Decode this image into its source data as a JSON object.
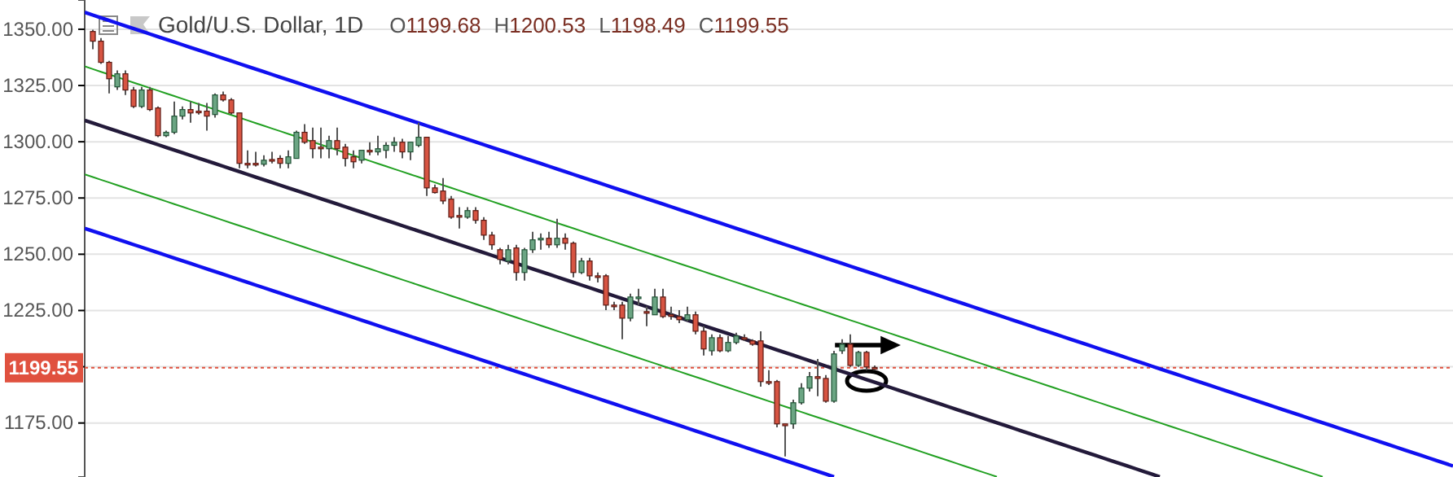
{
  "chart_data": {
    "type": "candlestick",
    "title": "Gold/U.S. Dollar, 1D",
    "annotations": [
      "O1199.68",
      "H1200.53",
      "L1198.49",
      "C1199.55"
    ],
    "categories": [
      null,
      null,
      null,
      null,
      null,
      null,
      null,
      null,
      null,
      null,
      null,
      null,
      null,
      null,
      null,
      null,
      null,
      null,
      null,
      null,
      null,
      null,
      null,
      null,
      null,
      null,
      null,
      null,
      null,
      null,
      null,
      null,
      null,
      null,
      null,
      null,
      null,
      null,
      null,
      null,
      null,
      null,
      null,
      null,
      null,
      null,
      null,
      null,
      null,
      null,
      null,
      null,
      null,
      null,
      null,
      null,
      null,
      null,
      null,
      null,
      null,
      null,
      null,
      null,
      null,
      null,
      null,
      null,
      null,
      null,
      null,
      null,
      null,
      null,
      null,
      null,
      null,
      null,
      null,
      null,
      null,
      null,
      null,
      null,
      null,
      null,
      null,
      null,
      null,
      null,
      null,
      null,
      null,
      null,
      null,
      null,
      null,
      null,
      null,
      null,
      null,
      null,
      null,
      null,
      null,
      null,
      null,
      null,
      null,
      null,
      null,
      null,
      null,
      null,
      null,
      null,
      null,
      null,
      null,
      null,
      null,
      null,
      null,
      null,
      null,
      null,
      null,
      null,
      null,
      null,
      null,
      null,
      null,
      null,
      null,
      null,
      null,
      null,
      null,
      null,
      null,
      null,
      null,
      null,
      null,
      null,
      null,
      null,
      null,
      null,
      null,
      null,
      null,
      null,
      null,
      null,
      null,
      null,
      null,
      null,
      null,
      null,
      null,
      null,
      null,
      null,
      null,
      null,
      null
    ],
    "ohlc": [
      null,
      [
        1349.0,
        1349.8,
        1341.1,
        1344.7
      ],
      [
        1344.7,
        1346.1,
        1334.6,
        1335.3
      ],
      [
        1335.3,
        1336.0,
        1321.5,
        1328.0
      ],
      [
        1324.4,
        1331.7,
        1323.0,
        1330.2
      ],
      [
        1330.2,
        1331.7,
        1320.8,
        1323.0
      ],
      [
        1323.0,
        1324.4,
        1315.0,
        1315.7
      ],
      [
        1315.7,
        1324.4,
        1315.0,
        1323.0
      ],
      [
        1323.0,
        1324.4,
        1313.6,
        1314.3
      ],
      [
        1315.0,
        1315.7,
        1302.0,
        1302.7
      ],
      [
        1302.7,
        1304.9,
        1302.0,
        1304.2
      ],
      [
        1304.2,
        1317.9,
        1303.4,
        1311.4
      ],
      [
        1311.4,
        1315.7,
        1309.9,
        1314.3
      ],
      [
        1314.3,
        1317.9,
        1308.5,
        1312.8
      ],
      [
        1313.6,
        1317.2,
        1312.1,
        1313.2
      ],
      [
        1313.6,
        1317.2,
        1304.9,
        1311.4
      ],
      [
        1312.1,
        1321.5,
        1310.7,
        1320.8
      ],
      [
        1320.8,
        1322.3,
        1317.9,
        1318.6
      ],
      [
        1318.6,
        1319.4,
        1312.1,
        1312.8
      ],
      [
        1312.8,
        1312.8,
        1288.2,
        1290.4
      ],
      [
        1290.4,
        1296.2,
        1288.2,
        1290.0
      ],
      [
        1290.4,
        1295.5,
        1289.0,
        1290.0
      ],
      [
        1290.0,
        1294.0,
        1289.0,
        1291.8
      ],
      [
        1292.1,
        1295.5,
        1290.4,
        1291.8
      ],
      [
        1292.6,
        1294.0,
        1288.2,
        1290.4
      ],
      [
        1290.4,
        1296.2,
        1288.2,
        1293.3
      ],
      [
        1292.6,
        1304.9,
        1292.6,
        1304.2
      ],
      [
        1304.2,
        1307.8,
        1299.1,
        1299.8
      ],
      [
        1300.5,
        1306.3,
        1292.6,
        1296.9
      ],
      [
        1297.6,
        1306.3,
        1292.6,
        1297.3
      ],
      [
        1296.9,
        1302.7,
        1292.6,
        1300.5
      ],
      [
        1300.5,
        1306.3,
        1294.0,
        1296.9
      ],
      [
        1297.6,
        1299.1,
        1289.0,
        1292.6
      ],
      [
        1293.3,
        1296.2,
        1288.2,
        1291.1
      ],
      [
        1291.8,
        1296.2,
        1290.4,
        1296.2
      ],
      [
        1296.2,
        1299.8,
        1294.0,
        1295.8
      ],
      [
        1295.5,
        1302.7,
        1294.0,
        1296.9
      ],
      [
        1296.2,
        1299.8,
        1292.6,
        1298.4
      ],
      [
        1298.4,
        1302.0,
        1295.5,
        1299.8
      ],
      [
        1299.8,
        1301.3,
        1292.6,
        1295.5
      ],
      [
        1295.5,
        1299.8,
        1291.8,
        1299.8
      ],
      [
        1298.4,
        1308.5,
        1297.6,
        1302.0
      ],
      [
        1302.0,
        1302.0,
        1275.9,
        1279.5
      ],
      [
        1279.5,
        1281.0,
        1277.0,
        1277.4
      ],
      [
        1278.1,
        1283.9,
        1272.3,
        1273.7
      ],
      [
        1274.5,
        1275.9,
        1265.8,
        1266.5
      ],
      [
        1267.2,
        1270.9,
        1261.4,
        1266.5
      ],
      [
        1266.5,
        1270.9,
        1265.8,
        1269.4
      ],
      [
        1269.4,
        1270.9,
        1263.6,
        1265.1
      ],
      [
        1265.1,
        1266.5,
        1256.4,
        1258.5
      ],
      [
        1258.5,
        1260.0,
        1252.0,
        1254.2
      ],
      [
        1252.0,
        1252.8,
        1245.5,
        1247.7
      ],
      [
        1247.0,
        1254.2,
        1245.5,
        1252.0
      ],
      [
        1252.8,
        1254.2,
        1238.3,
        1241.9
      ],
      [
        1241.9,
        1252.8,
        1238.3,
        1252.0
      ],
      [
        1252.0,
        1260.0,
        1250.6,
        1256.4
      ],
      [
        1256.4,
        1259.3,
        1252.0,
        1257.1
      ],
      [
        1257.1,
        1260.0,
        1252.8,
        1254.2
      ],
      [
        1254.2,
        1265.8,
        1252.8,
        1257.1
      ],
      [
        1257.1,
        1259.3,
        1252.0,
        1254.9
      ],
      [
        1254.9,
        1255.6,
        1239.7,
        1241.9
      ],
      [
        1241.9,
        1248.4,
        1241.2,
        1247.0
      ],
      [
        1247.0,
        1248.4,
        1238.3,
        1240.4
      ],
      [
        1240.4,
        1241.9,
        1237.5,
        1239.7
      ],
      [
        1240.4,
        1241.2,
        1225.2,
        1227.4
      ],
      [
        1227.4,
        1228.9,
        1225.2,
        1227.0
      ],
      [
        1227.4,
        1228.9,
        1212.2,
        1221.6
      ],
      [
        1221.6,
        1232.5,
        1220.2,
        1231.0
      ],
      [
        1230.7,
        1234.7,
        1227.4,
        1231.0
      ],
      [
        1224.5,
        1226.7,
        1218.0,
        1223.8
      ],
      [
        1223.1,
        1234.7,
        1223.1,
        1231.0
      ],
      [
        1231.0,
        1234.7,
        1221.6,
        1222.3
      ],
      [
        1223.1,
        1226.7,
        1220.9,
        1222.7
      ],
      [
        1222.3,
        1225.2,
        1219.4,
        1220.9
      ],
      [
        1220.9,
        1226.7,
        1220.2,
        1223.1
      ],
      [
        1223.1,
        1224.5,
        1214.4,
        1215.8
      ],
      [
        1215.8,
        1218.0,
        1205.0,
        1207.9
      ],
      [
        1207.1,
        1214.4,
        1205.0,
        1212.9
      ],
      [
        1212.9,
        1214.4,
        1206.4,
        1207.1
      ],
      [
        1207.1,
        1213.7,
        1206.4,
        1210.8
      ],
      [
        1210.8,
        1215.1,
        1210.0,
        1213.7
      ],
      [
        1212.9,
        1214.4,
        1211.5,
        1212.2
      ],
      [
        1211.5,
        1212.2,
        1209.3,
        1210.0
      ],
      [
        1211.5,
        1215.8,
        1191.2,
        1193.4
      ],
      [
        1193.4,
        1198.5,
        1191.9,
        1193.0
      ],
      [
        1193.4,
        1194.1,
        1173.1,
        1174.6
      ],
      [
        1174.6,
        1174.6,
        1160.1,
        1173.8
      ],
      [
        1174.6,
        1185.4,
        1172.4,
        1184.0
      ],
      [
        1184.0,
        1192.7,
        1183.2,
        1190.5
      ],
      [
        1190.5,
        1197.7,
        1189.0,
        1195.6
      ],
      [
        1195.6,
        1203.5,
        1186.9,
        1194.8
      ],
      [
        1194.8,
        1196.3,
        1184.0,
        1184.7
      ],
      [
        1184.7,
        1207.1,
        1184.0,
        1205.7
      ],
      [
        1207.1,
        1212.2,
        1205.7,
        1210.0
      ],
      [
        1210.0,
        1214.4,
        1199.9,
        1200.6
      ],
      [
        1200.6,
        1207.1,
        1199.9,
        1206.4
      ],
      [
        1206.4,
        1207.1,
        1198.5,
        1199.9
      ],
      [
        1199.68,
        1200.53,
        1198.49,
        1199.55
      ],
      null,
      null,
      null,
      null,
      null,
      null,
      null,
      null,
      null,
      null,
      null,
      null,
      null,
      null,
      null,
      null,
      null,
      null,
      null,
      null,
      null,
      null,
      null,
      null,
      null,
      null,
      null,
      null,
      null,
      null,
      null,
      null,
      null,
      null,
      null,
      null,
      null,
      null,
      null,
      null,
      null,
      null,
      null,
      null,
      null,
      null,
      null,
      null,
      null,
      null,
      null,
      null,
      null,
      null,
      null,
      null,
      null,
      null,
      null,
      null,
      null,
      null,
      null,
      null,
      null,
      null,
      null,
      null,
      null,
      null,
      null
    ],
    "series": [
      {
        "type": "line",
        "color": "#1010f0",
        "values": [
          1357.5,
          1356.3,
          1355.1,
          1353.9,
          1352.7,
          1351.5,
          1350.3,
          1349.1,
          1347.9,
          1346.7,
          1345.5,
          1344.3,
          1343.1,
          1341.9,
          1340.7,
          1339.5,
          1338.3,
          1337.1,
          1335.9,
          1334.7,
          1333.5,
          1332.3,
          1331.1,
          1329.9,
          1328.7,
          1327.5,
          1326.3,
          1325.1,
          1323.9,
          1322.7,
          1321.5,
          1320.3,
          1319.1,
          1317.9,
          1316.7,
          1315.5,
          1314.3,
          1313.1,
          1311.9,
          1310.7,
          1309.5,
          1308.3,
          1307.1,
          1305.9,
          1304.7,
          1303.5,
          1302.3,
          1301.1,
          1299.9,
          1298.7,
          1297.5,
          1296.3,
          1295.1,
          1293.9,
          1292.7,
          1291.5,
          1290.3,
          1289.1,
          1287.9,
          1286.7,
          1285.5,
          1284.3,
          1283.1,
          1281.9,
          1280.7,
          1279.5,
          1278.3,
          1277.1,
          1275.9,
          1274.7,
          1273.5,
          1272.3,
          1271.1,
          1269.9,
          1268.7,
          1267.5,
          1266.3,
          1265.1,
          1263.9,
          1262.7,
          1261.5,
          1260.3,
          1259.1,
          1257.9,
          1256.7,
          1255.5,
          1254.3,
          1253.1,
          1251.9,
          1250.7,
          1249.5,
          1248.3,
          1247.1,
          1245.9,
          1244.7,
          1243.5,
          1242.3,
          1241.1,
          1239.9,
          1238.7,
          1237.5,
          1236.3,
          1235.1,
          1233.9,
          1232.7,
          1231.5,
          1230.3,
          1229.1,
          1227.9,
          1226.7,
          1225.5,
          1224.3,
          1223.1,
          1221.9,
          1220.7,
          1219.5,
          1218.3,
          1217.1,
          1215.9,
          1214.7,
          1213.5,
          1212.3,
          1211.1,
          1209.9,
          1208.7,
          1207.5,
          1206.3,
          1205.1,
          1203.9,
          1202.7,
          1201.5,
          1200.3,
          1199.1,
          1197.9,
          1196.7,
          1195.5,
          1194.3,
          1193.1,
          1191.9,
          1190.7,
          1189.5,
          1188.3,
          1187.1,
          1185.9,
          1184.7,
          1183.5,
          1182.3,
          1181.1,
          1179.9,
          1178.7,
          1177.5,
          1176.3,
          1175.1,
          1173.9,
          1172.7,
          1171.5,
          1170.3,
          1169.1,
          1167.9,
          1166.7,
          1165.5,
          1164.3,
          1163.1,
          1161.9,
          1160.7,
          1159.5,
          1158.3,
          1157.1,
          1155.9
        ]
      },
      {
        "type": "line",
        "color": "#22a022",
        "values": [
          1333.5,
          1332.3,
          1331.1,
          1329.9,
          1328.7,
          1327.5,
          1326.3,
          1325.1,
          1323.9,
          1322.7,
          1321.5,
          1320.3,
          1319.1,
          1317.9,
          1316.7,
          1315.5,
          1314.3,
          1313.1,
          1311.9,
          1310.7,
          1309.5,
          1308.3,
          1307.1,
          1305.9,
          1304.7,
          1303.5,
          1302.3,
          1301.1,
          1299.9,
          1298.7,
          1297.5,
          1296.3,
          1295.1,
          1293.9,
          1292.7,
          1291.5,
          1290.3,
          1289.1,
          1287.9,
          1286.7,
          1285.5,
          1284.3,
          1283.1,
          1281.9,
          1280.7,
          1279.5,
          1278.3,
          1277.1,
          1275.9,
          1274.7,
          1273.5,
          1272.3,
          1271.1,
          1269.9,
          1268.7,
          1267.5,
          1266.3,
          1265.1,
          1263.9,
          1262.7,
          1261.5,
          1260.3,
          1259.1,
          1257.9,
          1256.7,
          1255.5,
          1254.3,
          1253.1,
          1251.9,
          1250.7,
          1249.5,
          1248.3,
          1247.1,
          1245.9,
          1244.7,
          1243.5,
          1242.3,
          1241.1,
          1239.9,
          1238.7,
          1237.5,
          1236.3,
          1235.1,
          1233.9,
          1232.7,
          1231.5,
          1230.3,
          1229.1,
          1227.9,
          1226.7,
          1225.5,
          1224.3,
          1223.1,
          1221.9,
          1220.7,
          1219.5,
          1218.3,
          1217.1,
          1215.9,
          1214.7,
          1213.5,
          1212.3,
          1211.1,
          1209.9,
          1208.7,
          1207.5,
          1206.3,
          1205.1,
          1203.9,
          1202.7,
          1201.5,
          1200.3,
          1199.1,
          1197.9,
          1196.7,
          1195.5,
          1194.3,
          1193.1,
          1191.9,
          1190.7,
          1189.5,
          1188.3,
          1187.1,
          1185.9,
          1184.7,
          1183.5,
          1182.3,
          1181.1,
          1179.9,
          1178.7,
          1177.5,
          1176.3,
          1175.1,
          1173.9,
          1172.7,
          1171.5,
          1170.3,
          1169.1,
          1167.9,
          1166.7,
          1165.5,
          1164.3,
          1163.1,
          1161.9,
          1160.7,
          1159.5,
          1158.3,
          1157.1,
          1155.9,
          1154.7,
          1153.5,
          1152.3,
          1151.1,
          null,
          null,
          null,
          null,
          null,
          null,
          null,
          null,
          null,
          null,
          null,
          null,
          null,
          null,
          null,
          null
        ]
      },
      {
        "type": "line",
        "color": "#231a3a",
        "values": [
          1309.5,
          1308.3,
          1307.1,
          1305.9,
          1304.7,
          1303.5,
          1302.3,
          1301.1,
          1299.9,
          1298.7,
          1297.5,
          1296.3,
          1295.1,
          1293.9,
          1292.7,
          1291.5,
          1290.3,
          1289.1,
          1287.9,
          1286.7,
          1285.5,
          1284.3,
          1283.1,
          1281.9,
          1280.7,
          1279.5,
          1278.3,
          1277.1,
          1275.9,
          1274.7,
          1273.5,
          1272.3,
          1271.1,
          1269.9,
          1268.7,
          1267.5,
          1266.3,
          1265.1,
          1263.9,
          1262.7,
          1261.5,
          1260.3,
          1259.1,
          1257.9,
          1256.7,
          1255.5,
          1254.3,
          1253.1,
          1251.9,
          1250.7,
          1249.5,
          1248.3,
          1247.1,
          1245.9,
          1244.7,
          1243.5,
          1242.3,
          1241.1,
          1239.9,
          1238.7,
          1237.5,
          1236.3,
          1235.1,
          1233.9,
          1232.7,
          1231.5,
          1230.3,
          1229.1,
          1227.9,
          1226.7,
          1225.5,
          1224.3,
          1223.1,
          1221.9,
          1220.7,
          1219.5,
          1218.3,
          1217.1,
          1215.9,
          1214.7,
          1213.5,
          1212.3,
          1211.1,
          1209.9,
          1208.7,
          1207.5,
          1206.3,
          1205.1,
          1203.9,
          1202.7,
          1201.5,
          1200.3,
          1199.1,
          1197.9,
          1196.7,
          1195.5,
          1194.3,
          1193.1,
          1191.9,
          1190.7,
          1189.5,
          1188.3,
          1187.1,
          1185.9,
          1184.7,
          1183.5,
          1182.3,
          1181.1,
          1179.9,
          1178.7,
          1177.5,
          1176.3,
          1175.1,
          1173.9,
          1172.7,
          1171.5,
          1170.3,
          1169.1,
          1167.9,
          1166.7,
          1165.5,
          1164.3,
          1163.1,
          1161.9,
          1160.7,
          1159.5,
          1158.3,
          1157.1,
          1155.9,
          1154.7,
          1153.5,
          1152.3,
          1151.1,
          null,
          null,
          null,
          null,
          null,
          null,
          null,
          null,
          null,
          null,
          null,
          null,
          null,
          null,
          null,
          null,
          null,
          null,
          null,
          null,
          null,
          null,
          null,
          null,
          null,
          null,
          null,
          null,
          null,
          null,
          null,
          null,
          null,
          null,
          null,
          null
        ]
      },
      {
        "type": "line",
        "color": "#22a022",
        "values": [
          1285.5,
          1284.3,
          1283.1,
          1281.9,
          1280.7,
          1279.5,
          1278.3,
          1277.1,
          1275.9,
          1274.7,
          1273.5,
          1272.3,
          1271.1,
          1269.9,
          1268.7,
          1267.5,
          1266.3,
          1265.1,
          1263.9,
          1262.7,
          1261.5,
          1260.3,
          1259.1,
          1257.9,
          1256.7,
          1255.5,
          1254.3,
          1253.1,
          1251.9,
          1250.7,
          1249.5,
          1248.3,
          1247.1,
          1245.9,
          1244.7,
          1243.5,
          1242.3,
          1241.1,
          1239.9,
          1238.7,
          1237.5,
          1236.3,
          1235.1,
          1233.9,
          1232.7,
          1231.5,
          1230.3,
          1229.1,
          1227.9,
          1226.7,
          1225.5,
          1224.3,
          1223.1,
          1221.9,
          1220.7,
          1219.5,
          1218.3,
          1217.1,
          1215.9,
          1214.7,
          1213.5,
          1212.3,
          1211.1,
          1209.9,
          1208.7,
          1207.5,
          1206.3,
          1205.1,
          1203.9,
          1202.7,
          1201.5,
          1200.3,
          1199.1,
          1197.9,
          1196.7,
          1195.5,
          1194.3,
          1193.1,
          1191.9,
          1190.7,
          1189.5,
          1188.3,
          1187.1,
          1185.9,
          1184.7,
          1183.5,
          1182.3,
          1181.1,
          1179.9,
          1178.7,
          1177.5,
          1176.3,
          1175.1,
          1173.9,
          1172.7,
          1171.5,
          1170.3,
          1169.1,
          1167.9,
          1166.7,
          1165.5,
          1164.3,
          1163.1,
          1161.9,
          1160.7,
          1159.5,
          1158.3,
          1157.1,
          1155.9,
          1154.7,
          1153.5,
          1152.3,
          1151.1,
          null,
          null,
          null,
          null,
          null,
          null,
          null,
          null,
          null,
          null,
          null,
          null,
          null,
          null,
          null,
          null,
          null,
          null,
          null,
          null,
          null,
          null,
          null,
          null,
          null,
          null,
          null,
          null,
          null,
          null,
          null,
          null,
          null,
          null,
          null,
          null,
          null,
          null,
          null,
          null,
          null,
          null,
          null,
          null,
          null,
          null,
          null,
          null,
          null,
          null,
          null,
          null,
          null,
          null,
          null,
          null
        ]
      },
      {
        "type": "line",
        "color": "#1010f0",
        "values": [
          1261.5,
          1260.3,
          1259.1,
          1257.9,
          1256.7,
          1255.5,
          1254.3,
          1253.1,
          1251.9,
          1250.7,
          1249.5,
          1248.3,
          1247.1,
          1245.9,
          1244.7,
          1243.5,
          1242.3,
          1241.1,
          1239.9,
          1238.7,
          1237.5,
          1236.3,
          1235.1,
          1233.9,
          1232.7,
          1231.5,
          1230.3,
          1229.1,
          1227.9,
          1226.7,
          1225.5,
          1224.3,
          1223.1,
          1221.9,
          1220.7,
          1219.5,
          1218.3,
          1217.1,
          1215.9,
          1214.7,
          1213.5,
          1212.3,
          1211.1,
          1209.9,
          1208.7,
          1207.5,
          1206.3,
          1205.1,
          1203.9,
          1202.7,
          1201.5,
          1200.3,
          1199.1,
          1197.9,
          1196.7,
          1195.5,
          1194.3,
          1193.1,
          1191.9,
          1190.7,
          1189.5,
          1188.3,
          1187.1,
          1185.9,
          1184.7,
          1183.5,
          1182.3,
          1181.1,
          1179.9,
          1178.7,
          1177.5,
          1176.3,
          1175.1,
          1173.9,
          1172.7,
          1171.5,
          1170.3,
          1169.1,
          1167.9,
          1166.7,
          1165.5,
          1164.3,
          1163.1,
          1161.9,
          1160.7,
          1159.5,
          1158.3,
          1157.1,
          1155.9,
          1154.7,
          1153.5,
          1152.3,
          1151.1,
          null,
          null,
          null,
          null,
          null,
          null,
          null,
          null,
          null,
          null,
          null,
          null,
          null,
          null,
          null,
          null,
          null,
          null,
          null,
          null,
          null,
          null,
          null,
          null,
          null,
          null,
          null,
          null,
          null,
          null,
          null,
          null,
          null,
          null,
          null,
          null,
          null,
          null,
          null,
          null,
          null,
          null,
          null,
          null,
          null,
          null,
          null,
          null,
          null,
          null,
          null,
          null,
          null,
          null,
          null,
          null,
          null,
          null,
          null,
          null,
          null,
          null,
          null,
          null,
          null,
          null,
          null,
          null,
          null,
          null,
          null,
          null,
          null,
          null,
          null,
          null
        ]
      }
    ],
    "ref_lines": [
      {
        "axis": "y",
        "value": 1199.55,
        "label": "1199.55",
        "color": "#e0513f",
        "line_style": "dotted"
      }
    ],
    "ylim": [
      1151,
      1363
    ],
    "yticks": [
      {
        "value": 1175,
        "label": "1175.00"
      },
      {
        "value": 1200,
        "label": null
      },
      {
        "value": 1225,
        "label": "1225.00"
      },
      {
        "value": 1250,
        "label": "1250.00"
      },
      {
        "value": 1275,
        "label": "1275.00"
      },
      {
        "value": 1300,
        "label": "1300.00"
      },
      {
        "value": 1325,
        "label": "1325.00"
      },
      {
        "value": 1350,
        "label": "1350.00"
      }
    ],
    "grid": "y"
  }
}
